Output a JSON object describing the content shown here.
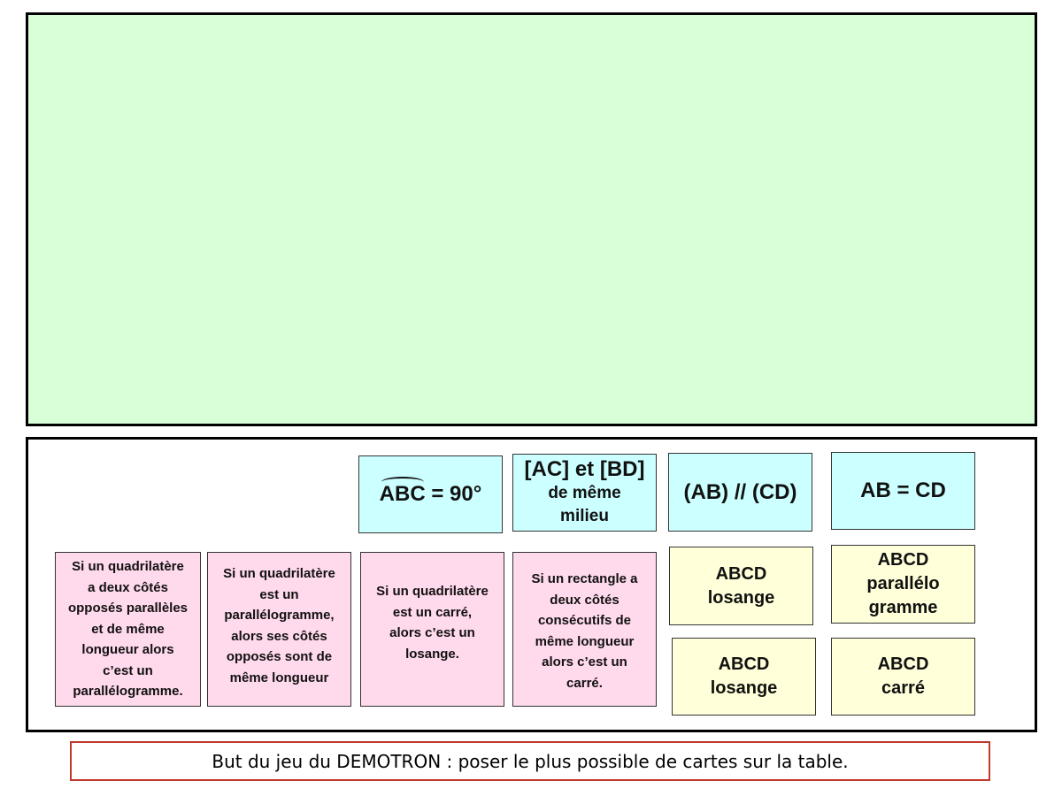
{
  "colors": {
    "table": "#d9ffd9",
    "hypothesis_card": "#ccffff",
    "theorem_card": "#ffd9ec",
    "conclusion_card": "#ffffd9",
    "caption_border": "#c0392b"
  },
  "hypothesis_cards": {
    "angle": {
      "arc_label": "ABC",
      "rest": " = 90°"
    },
    "diagonals": {
      "line1": "[AC] et [BD]",
      "line2": "de même\nmilieu"
    },
    "parallel": "(AB) // (CD)",
    "equal": "AB = CD"
  },
  "theorem_cards": [
    "Si un quadrilatère\na deux côtés\nopposés parallèles\net de même\nlongueur alors\nc’est un\nparallélogramme.",
    "Si un quadrilatère\nest un\nparallélogramme,\nalors ses côtés\nopposés sont de\nmême longueur",
    "Si un quadrilatère\nest un carré,\nalors c’est un\nlosange.",
    "Si un rectangle a\ndeux côtés\nconsécutifs de\nmême longueur\nalors c’est un\ncarré."
  ],
  "conclusion_cards": [
    "ABCD\nlosange",
    "ABCD\nparallélo\ngramme",
    "ABCD\nlosange",
    "ABCD\ncarré"
  ],
  "caption": "But du jeu du DEMOTRON : poser le plus possible de cartes sur la table."
}
